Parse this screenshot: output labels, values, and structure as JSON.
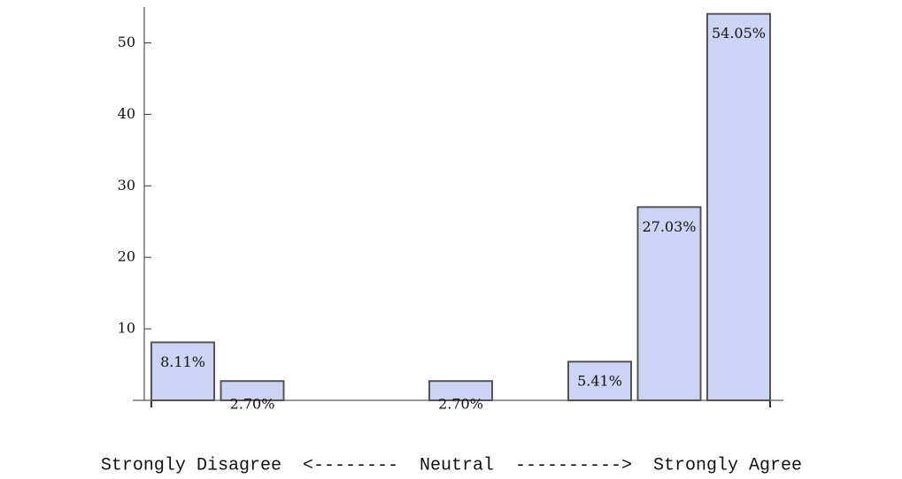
{
  "chart_data": {
    "type": "bar",
    "categories": [
      null,
      null,
      null,
      null,
      null,
      null,
      null,
      null,
      null
    ],
    "values": [
      8.11,
      2.7,
      0,
      0,
      2.7,
      0,
      5.41,
      27.03,
      54.05
    ],
    "value_labels": [
      "8.11%",
      "2.70%",
      null,
      null,
      "2.70%",
      null,
      "5.41%",
      "27.03%",
      "54.05%"
    ],
    "xlabel": "Strongly Disagree  <--------  Neutral  ---------->  Strongly Agree",
    "color": "#ccd3f5",
    "ylim": [
      0,
      55
    ],
    "yticks": [
      10,
      20,
      30,
      40,
      50
    ]
  }
}
